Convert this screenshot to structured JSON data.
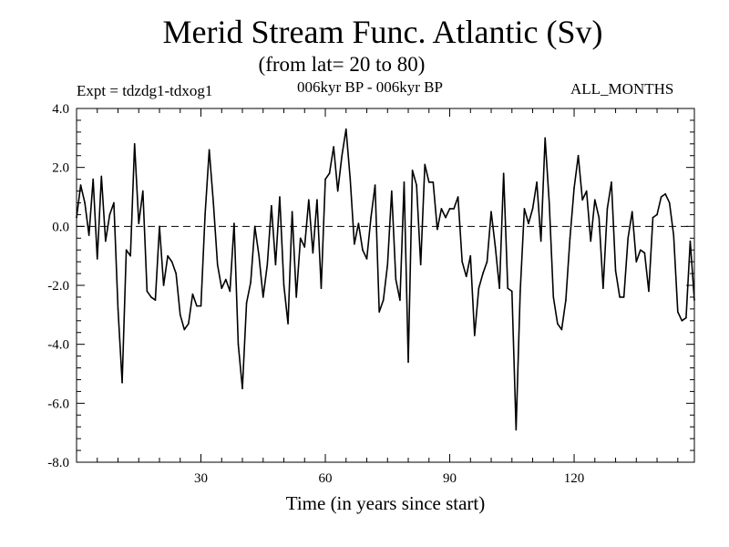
{
  "header": {
    "title": "Merid Stream Func. Atlantic (Sv)",
    "subtitle": "(from lat= 20 to 80)",
    "expt": "Expt = tdzdg1-tdxog1",
    "period": "006kyr BP - 006kyr BP",
    "months": "ALL_MONTHS"
  },
  "chart_data": {
    "type": "line",
    "title": "Merid Stream Func. Atlantic (Sv)",
    "xlabel": "Time (in years since start)",
    "ylabel": "",
    "xlim": [
      0,
      149
    ],
    "ylim": [
      -8.0,
      4.0
    ],
    "xticks": [
      30,
      60,
      90,
      120
    ],
    "yticks": [
      -8.0,
      -6.0,
      -4.0,
      -2.0,
      0.0,
      2.0,
      4.0
    ],
    "ytick_labels": [
      "-8.0",
      "-6.0",
      "-4.0",
      "-2.0",
      "0.0",
      "2.0",
      "4.0"
    ],
    "reference_line": {
      "y": 0.0,
      "style": "dashed"
    },
    "series": [
      {
        "name": "Merid Stream Func.",
        "x": [
          0,
          1,
          2,
          3,
          4,
          5,
          6,
          7,
          8,
          9,
          10,
          11,
          12,
          13,
          14,
          15,
          16,
          17,
          18,
          19,
          20,
          21,
          22,
          23,
          24,
          25,
          26,
          27,
          28,
          29,
          30,
          31,
          32,
          33,
          34,
          35,
          36,
          37,
          38,
          39,
          40,
          41,
          42,
          43,
          44,
          45,
          46,
          47,
          48,
          49,
          50,
          51,
          52,
          53,
          54,
          55,
          56,
          57,
          58,
          59,
          60,
          61,
          62,
          63,
          64,
          65,
          66,
          67,
          68,
          69,
          70,
          71,
          72,
          73,
          74,
          75,
          76,
          77,
          78,
          79,
          80,
          81,
          82,
          83,
          84,
          85,
          86,
          87,
          88,
          89,
          90,
          91,
          92,
          93,
          94,
          95,
          96,
          97,
          98,
          99,
          100,
          101,
          102,
          103,
          104,
          105,
          106,
          107,
          108,
          109,
          110,
          111,
          112,
          113,
          114,
          115,
          116,
          117,
          118,
          119,
          120,
          121,
          122,
          123,
          124,
          125,
          126,
          127,
          128,
          129,
          130,
          131,
          132,
          133,
          134,
          135,
          136,
          137,
          138,
          139,
          140,
          141,
          142,
          143,
          144,
          145,
          146,
          147,
          148,
          149
        ],
        "y": [
          0.3,
          1.4,
          0.8,
          -0.3,
          1.6,
          -1.1,
          1.7,
          -0.5,
          0.4,
          0.8,
          -2.8,
          -5.3,
          -0.8,
          -1.0,
          2.8,
          0.1,
          1.2,
          -2.2,
          -2.4,
          -2.5,
          0.0,
          -2.0,
          -1.0,
          -1.2,
          -1.6,
          -3.0,
          -3.5,
          -3.3,
          -2.3,
          -2.7,
          -2.7,
          0.4,
          2.6,
          0.8,
          -1.3,
          -2.1,
          -1.8,
          -2.2,
          0.1,
          -4.0,
          -5.5,
          -2.6,
          -1.9,
          0.0,
          -1.0,
          -2.4,
          -1.3,
          0.7,
          -1.3,
          1.0,
          -2.0,
          -3.3,
          0.5,
          -2.4,
          -0.4,
          -0.7,
          0.9,
          -0.9,
          0.9,
          -2.1,
          1.6,
          1.8,
          2.7,
          1.2,
          2.4,
          3.3,
          1.6,
          -0.6,
          0.1,
          -0.8,
          -1.1,
          0.3,
          1.4,
          -2.9,
          -2.5,
          -1.3,
          1.2,
          -1.8,
          -2.5,
          1.5,
          -4.6,
          1.9,
          1.4,
          -1.3,
          2.1,
          1.5,
          1.5,
          -0.1,
          0.6,
          0.3,
          0.6,
          0.6,
          1.0,
          -1.2,
          -1.7,
          -1.0,
          -3.7,
          -2.1,
          -1.6,
          -1.2,
          0.5,
          -0.7,
          -2.1,
          1.8,
          -2.1,
          -2.2,
          -6.9,
          -2.2,
          0.6,
          0.1,
          0.6,
          1.5,
          -0.5,
          3.0,
          0.8,
          -2.4,
          -3.3,
          -3.5,
          -2.5,
          -0.4,
          1.3,
          2.4,
          0.9,
          1.2,
          -0.5,
          0.9,
          0.3,
          -2.1,
          0.6,
          1.5,
          -1.5,
          -2.4,
          -2.4,
          -0.4,
          0.5,
          -1.2,
          -0.8,
          -0.9,
          -2.2,
          0.3,
          0.4,
          1.0,
          1.1,
          0.8,
          -0.3,
          -2.9,
          -3.2,
          -3.1,
          -0.5,
          -2.5
        ]
      }
    ]
  }
}
